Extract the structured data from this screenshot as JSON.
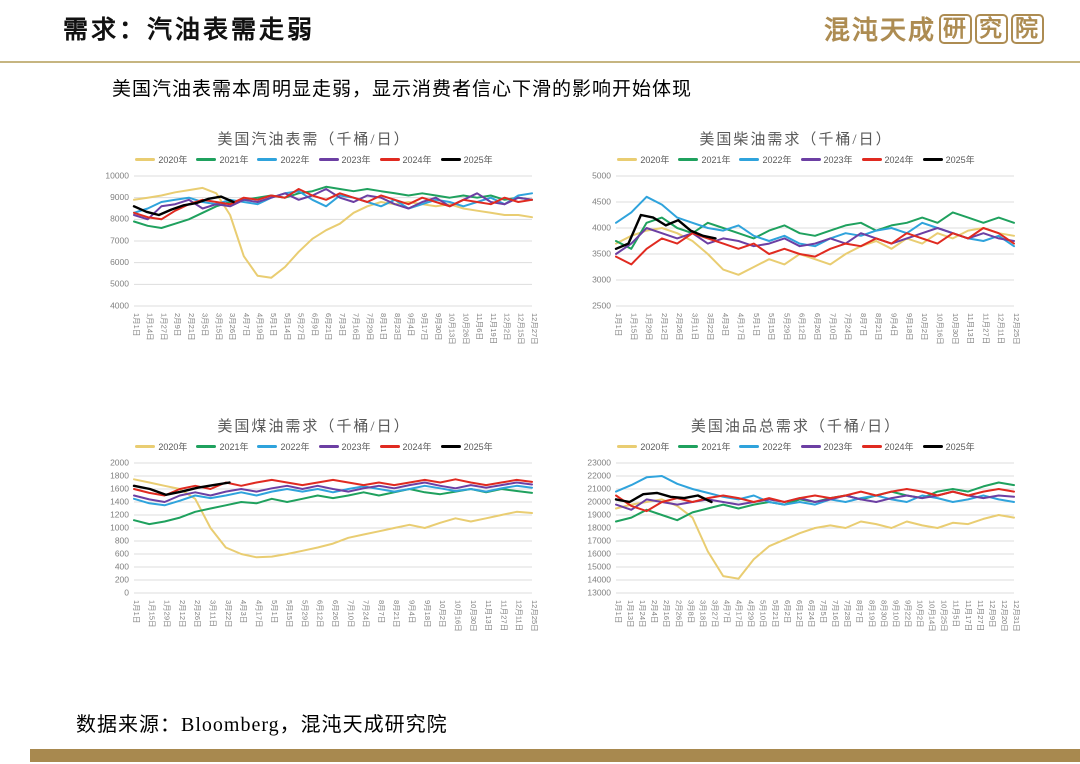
{
  "header": {
    "title": "需求：汽油表需走弱",
    "logo_main": "混沌天成",
    "logo_seal": "研究院"
  },
  "subtitle": "美国汽油表需本周明显走弱，显示消费者信心下滑的影响开始体现",
  "footer": {
    "source": "数据来源：Bloomberg，混沌天成研究院"
  },
  "theme": {
    "accent_gold": "#AD8C52",
    "divider_line": "#C6B581",
    "bottom_bar": "#A8894F",
    "grid_line": "#DDDDDD",
    "axis_text": "#808080",
    "chart_title_text": "#595959"
  },
  "chart_data": [
    {
      "type": "line",
      "title": "美国汽油表需（千桶/日）",
      "ylabel": "千桶/日",
      "ylim": [
        4000,
        10000
      ],
      "ytick_step": 1000,
      "grid": true,
      "legend_position": "top",
      "x_labels": [
        "1月1日",
        "1月14日",
        "1月27日",
        "2月9日",
        "2月21日",
        "3月5日",
        "3月15日",
        "3月26日",
        "4月7日",
        "4月19日",
        "5月1日",
        "5月14日",
        "5月27日",
        "6月9日",
        "6月21日",
        "7月3日",
        "7月16日",
        "7月29日",
        "8月11日",
        "8月23日",
        "9月4日",
        "9月17日",
        "9月30日",
        "10月13日",
        "10月26日",
        "11月6日",
        "11月19日",
        "12月2日",
        "12月15日",
        "12月27日"
      ],
      "series": [
        {
          "name": "2020年",
          "color": "#E9CD72",
          "x_span": 1,
          "values": [
            8900,
            9000,
            9100,
            9250,
            9350,
            9450,
            9200,
            8200,
            6300,
            5400,
            5300,
            5800,
            6500,
            7100,
            7500,
            7800,
            8300,
            8600,
            8800,
            8700,
            8800,
            8700,
            8600,
            8700,
            8500,
            8400,
            8300,
            8200,
            8200,
            8100
          ]
        },
        {
          "name": "2021年",
          "color": "#1FA15E",
          "x_span": 1,
          "values": [
            7900,
            7700,
            7600,
            7800,
            8000,
            8300,
            8600,
            8800,
            8900,
            9000,
            9100,
            9000,
            9200,
            9300,
            9500,
            9400,
            9300,
            9400,
            9300,
            9200,
            9100,
            9200,
            9100,
            9000,
            9100,
            9000,
            9100,
            8900,
            9000,
            8900
          ]
        },
        {
          "name": "2022年",
          "color": "#2FA3DC",
          "x_span": 1,
          "values": [
            8300,
            8500,
            8800,
            8900,
            9000,
            8800,
            8700,
            8900,
            8800,
            8700,
            9000,
            9200,
            9300,
            8900,
            8600,
            9100,
            9000,
            8800,
            8600,
            8900,
            8500,
            8700,
            8900,
            8800,
            8600,
            8800,
            9000,
            8700,
            9100,
            9200
          ]
        },
        {
          "name": "2023年",
          "color": "#6C3FA3",
          "x_span": 1,
          "values": [
            8200,
            8000,
            8600,
            8700,
            8900,
            8500,
            8700,
            8600,
            8900,
            8800,
            9000,
            9200,
            8900,
            9100,
            9400,
            9000,
            8800,
            9100,
            9000,
            8700,
            8500,
            8800,
            9000,
            8600,
            8900,
            9200,
            8800,
            8700,
            9000,
            8900
          ]
        },
        {
          "name": "2024年",
          "color": "#E02A20",
          "x_span": 1,
          "values": [
            8300,
            8100,
            8000,
            8400,
            8700,
            8900,
            8800,
            8700,
            9000,
            8900,
            9100,
            9000,
            9400,
            9100,
            8900,
            9200,
            9000,
            8800,
            9100,
            8900,
            8700,
            9000,
            8800,
            8600,
            8900,
            8800,
            8700,
            9000,
            8800,
            8900
          ]
        },
        {
          "name": "2025年",
          "color": "#000000",
          "x_span": 0.25,
          "values": [
            8600,
            8350,
            8200,
            8450,
            8650,
            8750,
            8950,
            9050,
            8800
          ]
        }
      ]
    },
    {
      "type": "line",
      "title": "美国柴油需求（千桶/日）",
      "ylabel": "千桶/日",
      "ylim": [
        2500,
        5000
      ],
      "ytick_step": 500,
      "grid": true,
      "legend_position": "top",
      "x_labels": [
        "1月1日",
        "1月15日",
        "1月29日",
        "2月12日",
        "2月26日",
        "3月11日",
        "3月22日",
        "4月3日",
        "4月17日",
        "5月1日",
        "5月15日",
        "5月29日",
        "6月12日",
        "6月26日",
        "7月10日",
        "7月24日",
        "8月7日",
        "8月21日",
        "9月4日",
        "9月18日",
        "10月2日",
        "10月16日",
        "10月30日",
        "11月13日",
        "11月27日",
        "12月11日",
        "12月25日"
      ],
      "series": [
        {
          "name": "2020年",
          "color": "#E9CD72",
          "x_span": 1,
          "values": [
            3700,
            3850,
            3950,
            4000,
            3900,
            3750,
            3500,
            3200,
            3100,
            3250,
            3400,
            3300,
            3500,
            3400,
            3300,
            3500,
            3650,
            3750,
            3600,
            3800,
            3700,
            3900,
            3800,
            3950,
            4000,
            3900,
            3850
          ]
        },
        {
          "name": "2021年",
          "color": "#1FA15E",
          "x_span": 1,
          "values": [
            3750,
            3600,
            4100,
            4200,
            4000,
            3900,
            4100,
            4000,
            3900,
            3800,
            3950,
            4050,
            3900,
            3850,
            3950,
            4050,
            4100,
            3950,
            4050,
            4100,
            4200,
            4100,
            4300,
            4200,
            4100,
            4200,
            4100
          ]
        },
        {
          "name": "2022年",
          "color": "#2FA3DC",
          "x_span": 1,
          "values": [
            4100,
            4300,
            4600,
            4450,
            4200,
            4100,
            4000,
            3950,
            4050,
            3850,
            3750,
            3850,
            3700,
            3650,
            3800,
            3900,
            3850,
            3950,
            4000,
            3900,
            4100,
            4000,
            3900,
            3800,
            3750,
            3850,
            3650
          ]
        },
        {
          "name": "2023年",
          "color": "#6C3FA3",
          "x_span": 1,
          "values": [
            3500,
            3700,
            4000,
            3900,
            3800,
            3900,
            3700,
            3800,
            3750,
            3650,
            3700,
            3800,
            3650,
            3700,
            3800,
            3700,
            3900,
            3800,
            3700,
            3800,
            3900,
            4000,
            3900,
            3800,
            3900,
            3800,
            3750
          ]
        },
        {
          "name": "2024年",
          "color": "#E02A20",
          "x_span": 1,
          "values": [
            3450,
            3300,
            3600,
            3800,
            3700,
            3900,
            3800,
            3700,
            3600,
            3700,
            3500,
            3600,
            3500,
            3450,
            3600,
            3700,
            3650,
            3800,
            3700,
            3900,
            3800,
            3700,
            3900,
            3800,
            4000,
            3900,
            3700
          ]
        },
        {
          "name": "2025年",
          "color": "#000000",
          "x_span": 0.25,
          "values": [
            3600,
            3700,
            4250,
            4200,
            4050,
            4150,
            3950,
            3850,
            3800
          ]
        }
      ]
    },
    {
      "type": "line",
      "title": "美国煤油需求（千桶/日）",
      "ylabel": "千桶/日",
      "ylim": [
        0,
        2000
      ],
      "ytick_step": 200,
      "grid": true,
      "legend_position": "top",
      "x_labels": [
        "1月1日",
        "1月15日",
        "1月29日",
        "2月12日",
        "2月26日",
        "3月11日",
        "3月22日",
        "4月3日",
        "4月17日",
        "5月1日",
        "5月15日",
        "5月29日",
        "6月12日",
        "6月26日",
        "7月10日",
        "7月24日",
        "8月7日",
        "8月21日",
        "9月4日",
        "9月18日",
        "10月2日",
        "10月16日",
        "10月30日",
        "11月13日",
        "11月27日",
        "12月11日",
        "12月25日"
      ],
      "series": [
        {
          "name": "2020年",
          "color": "#E9CD72",
          "x_span": 1,
          "values": [
            1750,
            1700,
            1650,
            1600,
            1450,
            1000,
            700,
            600,
            550,
            560,
            600,
            650,
            700,
            760,
            850,
            900,
            950,
            1000,
            1050,
            1000,
            1080,
            1150,
            1100,
            1150,
            1200,
            1250,
            1230
          ]
        },
        {
          "name": "2021年",
          "color": "#1FA15E",
          "x_span": 1,
          "values": [
            1120,
            1060,
            1100,
            1160,
            1250,
            1300,
            1350,
            1400,
            1380,
            1450,
            1400,
            1450,
            1500,
            1460,
            1500,
            1550,
            1500,
            1550,
            1600,
            1550,
            1520,
            1560,
            1600,
            1550,
            1600,
            1570,
            1540
          ]
        },
        {
          "name": "2022年",
          "color": "#2FA3DC",
          "x_span": 1,
          "values": [
            1450,
            1380,
            1350,
            1420,
            1500,
            1460,
            1500,
            1550,
            1500,
            1560,
            1600,
            1560,
            1600,
            1550,
            1600,
            1640,
            1600,
            1560,
            1600,
            1650,
            1610,
            1570,
            1600,
            1560,
            1610,
            1650,
            1620
          ]
        },
        {
          "name": "2023年",
          "color": "#6C3FA3",
          "x_span": 1,
          "values": [
            1500,
            1440,
            1400,
            1500,
            1550,
            1500,
            1560,
            1600,
            1560,
            1610,
            1650,
            1600,
            1650,
            1600,
            1560,
            1610,
            1650,
            1610,
            1660,
            1700,
            1650,
            1610,
            1660,
            1620,
            1660,
            1700,
            1670
          ]
        },
        {
          "name": "2024年",
          "color": "#E02A20",
          "x_span": 1,
          "values": [
            1600,
            1540,
            1500,
            1600,
            1650,
            1600,
            1700,
            1650,
            1700,
            1740,
            1700,
            1660,
            1700,
            1740,
            1700,
            1660,
            1700,
            1660,
            1700,
            1740,
            1700,
            1750,
            1700,
            1660,
            1700,
            1740,
            1710
          ]
        },
        {
          "name": "2025年",
          "color": "#000000",
          "x_span": 0.24,
          "values": [
            1650,
            1600,
            1510,
            1560,
            1620,
            1660,
            1700
          ]
        }
      ]
    },
    {
      "type": "line",
      "title": "美国油品总需求（千桶/日）",
      "ylabel": "千桶/日",
      "ylim": [
        13000,
        23000
      ],
      "ytick_step": 1000,
      "grid": true,
      "legend_position": "top",
      "x_labels": [
        "1月1日",
        "1月13日",
        "1月24日",
        "2月4日",
        "2月16日",
        "2月26日",
        "3月8日",
        "3月18日",
        "3月27日",
        "4月7日",
        "4月17日",
        "4月29日",
        "5月10日",
        "5月21日",
        "6月2日",
        "6月12日",
        "6月24日",
        "7月5日",
        "7月16日",
        "7月28日",
        "8月7日",
        "8月19日",
        "8月30日",
        "9月10日",
        "9月22日",
        "10月2日",
        "10月14日",
        "10月25日",
        "11月5日",
        "11月17日",
        "11月27日",
        "12月9日",
        "12月20日",
        "12月31日"
      ],
      "series": [
        {
          "name": "2020年",
          "color": "#E9CD72",
          "x_span": 1,
          "values": [
            19500,
            19800,
            20000,
            20200,
            19700,
            18800,
            16200,
            14300,
            14100,
            15600,
            16600,
            17100,
            17600,
            18000,
            18200,
            18000,
            18500,
            18300,
            18000,
            18500,
            18200,
            18000,
            18400,
            18300,
            18700,
            19000,
            18800
          ]
        },
        {
          "name": "2021年",
          "color": "#1FA15E",
          "x_span": 1,
          "values": [
            18500,
            18800,
            19400,
            19000,
            18600,
            19200,
            19500,
            19800,
            19500,
            19800,
            20000,
            19800,
            20200,
            20000,
            20300,
            20500,
            20200,
            20500,
            20800,
            20500,
            20300,
            20800,
            21000,
            20800,
            21200,
            21500,
            21300
          ]
        },
        {
          "name": "2022年",
          "color": "#2FA3DC",
          "x_span": 1,
          "values": [
            20800,
            21300,
            21900,
            22000,
            21400,
            21000,
            20700,
            20400,
            20200,
            20500,
            20000,
            19800,
            20000,
            19800,
            20200,
            20000,
            20300,
            20500,
            20200,
            20000,
            20500,
            20300,
            20000,
            20200,
            20500,
            20200,
            20000
          ]
        },
        {
          "name": "2023年",
          "color": "#6C3FA3",
          "x_span": 1,
          "values": [
            19800,
            19400,
            20200,
            20000,
            19800,
            20000,
            20200,
            20000,
            19800,
            20000,
            20200,
            20000,
            20300,
            20000,
            20200,
            20500,
            20200,
            20000,
            20300,
            20500,
            20300,
            20500,
            20800,
            20500,
            20300,
            20500,
            20400
          ]
        },
        {
          "name": "2024年",
          "color": "#E02A20",
          "x_span": 1,
          "values": [
            20500,
            19700,
            19300,
            20000,
            20300,
            20000,
            20300,
            20500,
            20300,
            20000,
            20300,
            20000,
            20300,
            20500,
            20300,
            20500,
            20800,
            20500,
            20800,
            21000,
            20800,
            20500,
            20800,
            20500,
            20800,
            21000,
            20800
          ]
        },
        {
          "name": "2025年",
          "color": "#000000",
          "x_span": 0.24,
          "values": [
            20200,
            20000,
            20600,
            20700,
            20400,
            20300,
            20500,
            20000
          ]
        }
      ]
    }
  ]
}
